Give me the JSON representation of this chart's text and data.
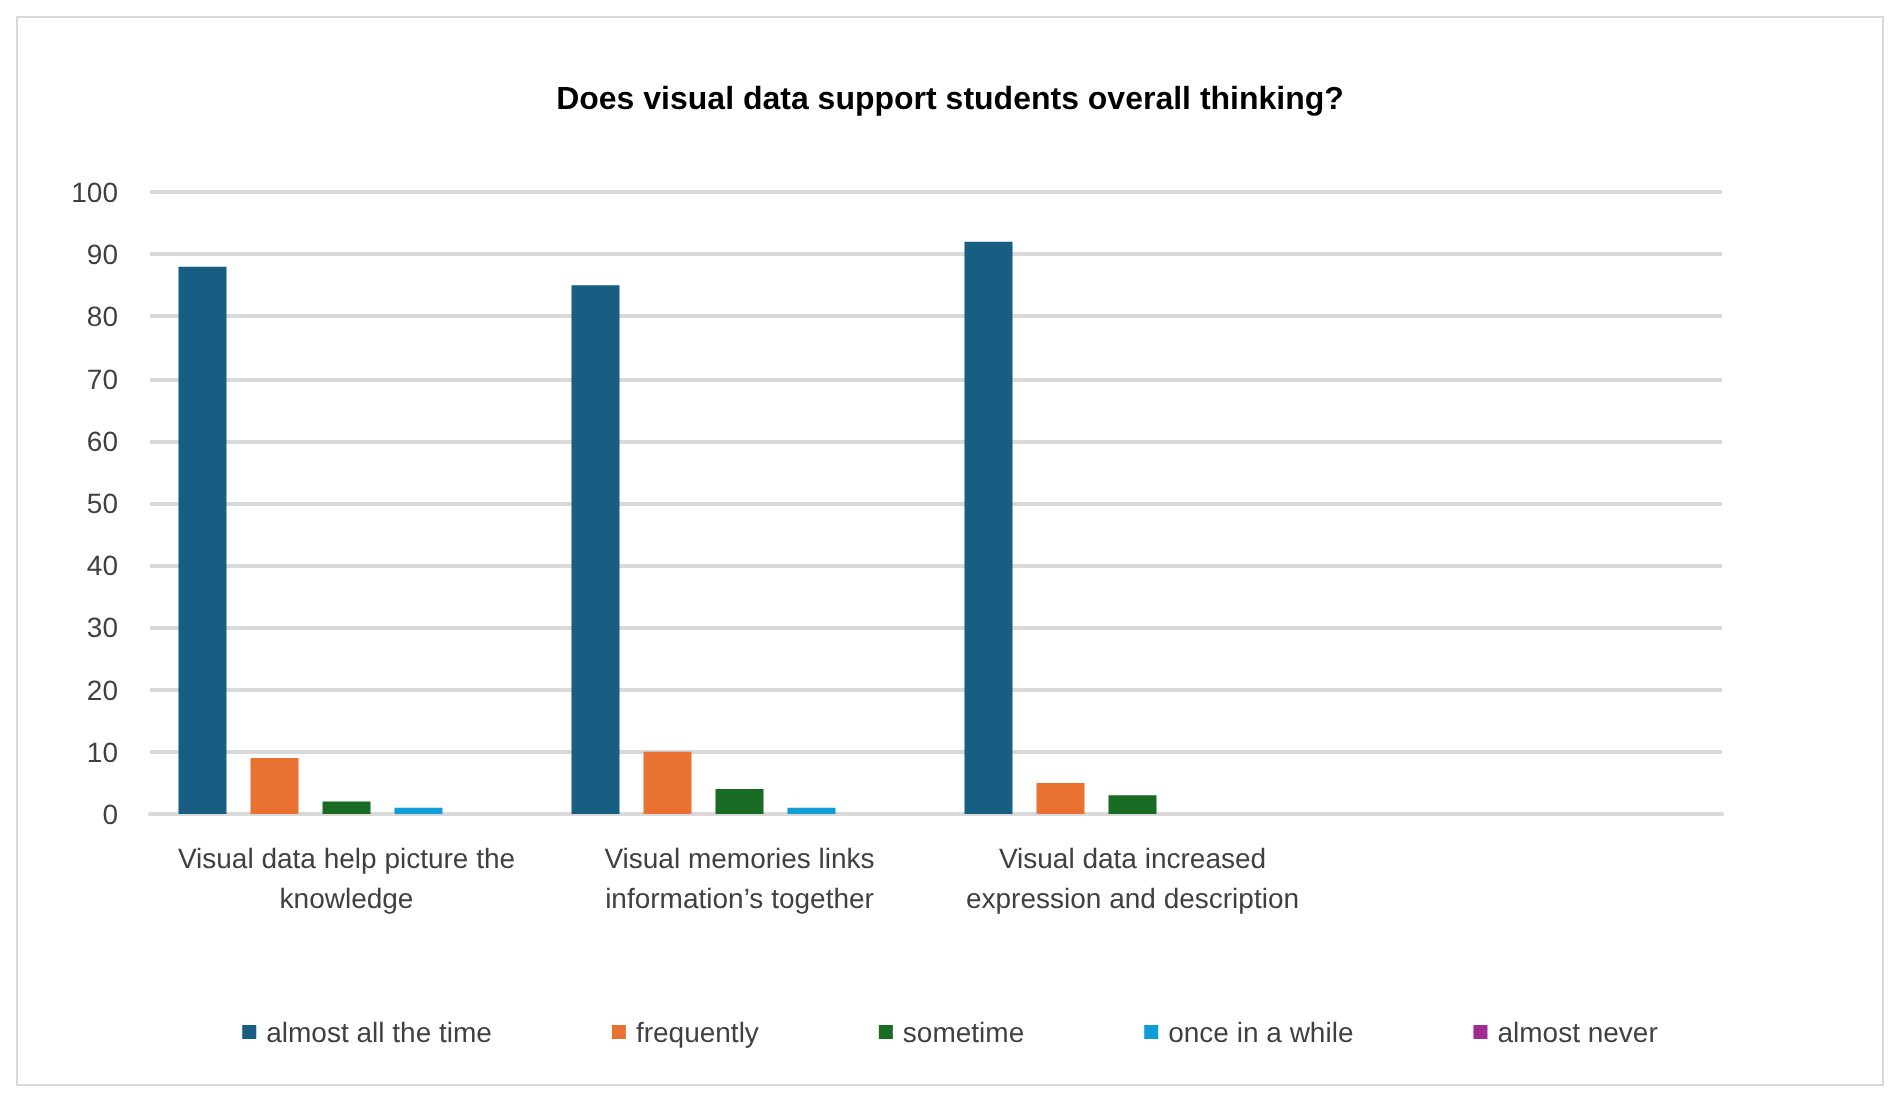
{
  "chart_data": {
    "type": "bar",
    "title": "Does visual data support students overall thinking?",
    "categories": [
      "Visual data help picture the knowledge",
      "Visual memories links information’s together",
      "Visual data increased expression and description",
      null
    ],
    "series": [
      {
        "name": "almost all the time",
        "color": "#175e82",
        "values": [
          88,
          85,
          92,
          null
        ]
      },
      {
        "name": "frequently",
        "color": "#e97132",
        "values": [
          9,
          10,
          5,
          null
        ]
      },
      {
        "name": "sometime",
        "color": "#196b24",
        "values": [
          2,
          4,
          3,
          null
        ]
      },
      {
        "name": "once in a while",
        "color": "#0f9ed5",
        "values": [
          1,
          1,
          0,
          null
        ]
      },
      {
        "name": "almost never",
        "color": "#a02b93",
        "values": [
          0,
          0,
          0,
          null
        ]
      }
    ],
    "ylim": [
      0,
      100
    ],
    "yticks": [
      0,
      10,
      20,
      30,
      40,
      50,
      60,
      70,
      80,
      90,
      100
    ],
    "grid": "y",
    "legend": "bottom"
  }
}
